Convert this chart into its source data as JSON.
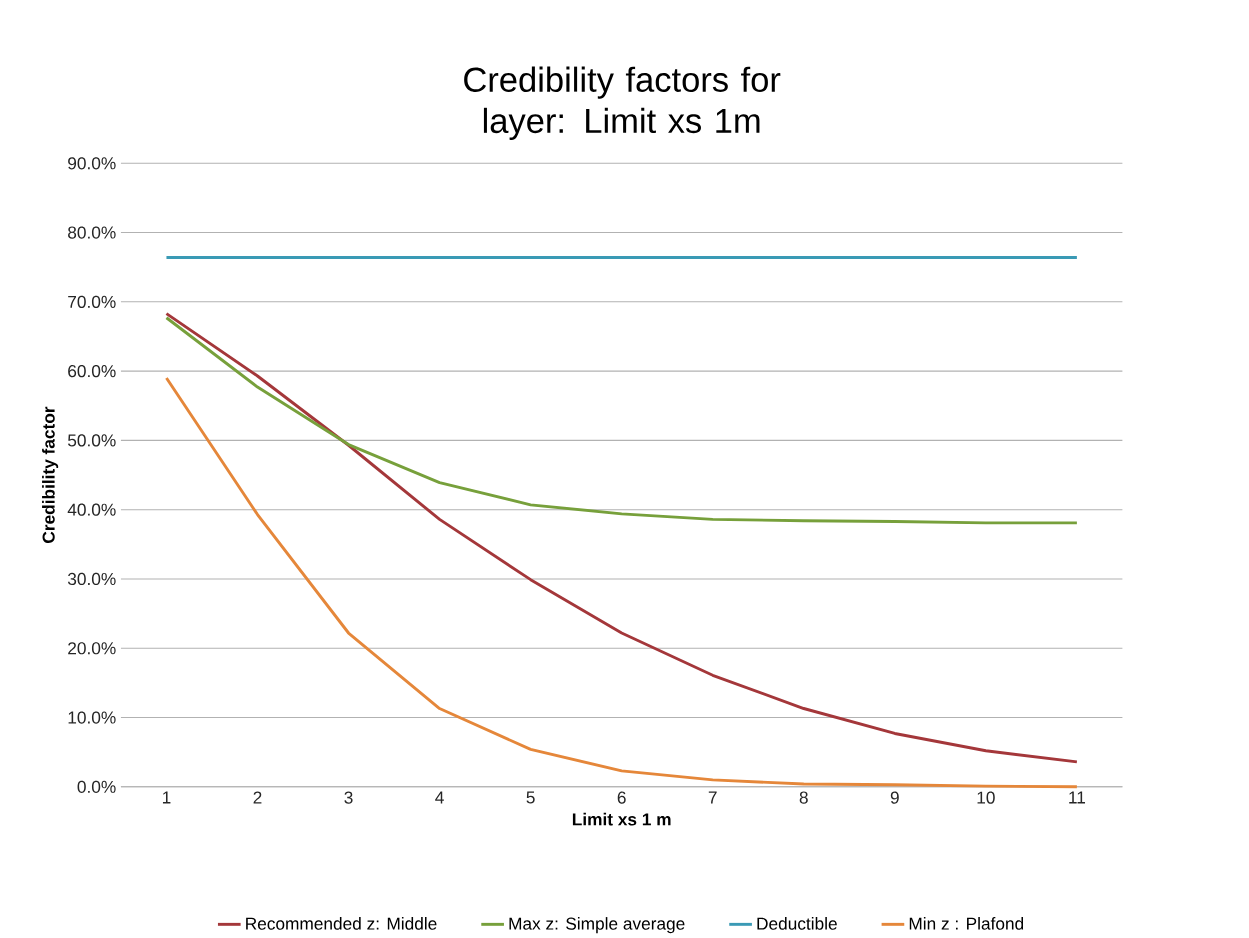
{
  "chart_data": {
    "type": "line",
    "title": "Credibility factors for layer: Limit xs 1m",
    "xlabel": "Limit xs 1 m",
    "ylabel": "Credibility factor",
    "categories": [
      "1",
      "2",
      "3",
      "4",
      "5",
      "6",
      "7",
      "8",
      "9",
      "10",
      "11"
    ],
    "series": [
      {
        "name": "Recommended z: Middle",
        "color": "#a4373a",
        "values": [
          68.3,
          59.3,
          49.3,
          38.6,
          29.9,
          22.2,
          16.1,
          11.3,
          7.7,
          5.2,
          3.6
        ]
      },
      {
        "name": "Max z: Simple average",
        "color": "#77a03b",
        "values": [
          67.7,
          57.7,
          49.4,
          43.9,
          40.7,
          39.4,
          38.6,
          38.4,
          38.3,
          38.1,
          38.1
        ]
      },
      {
        "name": "Deductible",
        "color": "#3a9ab5",
        "values": [
          76.4,
          76.4,
          76.4,
          76.4,
          76.4,
          76.4,
          76.4,
          76.4,
          76.4,
          76.4,
          76.4
        ]
      },
      {
        "name": "Min z : Plafond",
        "color": "#e5873a",
        "values": [
          59.0,
          39.3,
          22.2,
          11.3,
          5.4,
          2.3,
          1.0,
          0.4,
          0.3,
          0.1,
          0.0
        ]
      }
    ],
    "ylim": [
      0,
      90
    ],
    "yticks": [
      {
        "value": 0,
        "label": "0.0%"
      },
      {
        "value": 10,
        "label": "10.0%"
      },
      {
        "value": 20,
        "label": "20.0%"
      },
      {
        "value": 30,
        "label": "30.0%"
      },
      {
        "value": 40,
        "label": "40.0%"
      },
      {
        "value": 50,
        "label": "50.0%"
      },
      {
        "value": 60,
        "label": "60.0%"
      },
      {
        "value": 70,
        "label": "70.0%"
      },
      {
        "value": 80,
        "label": "80.0%"
      },
      {
        "value": 90,
        "label": "90.0%"
      }
    ],
    "grid": "y",
    "legend": "bottom",
    "marker": "none",
    "line_style": "solid"
  }
}
